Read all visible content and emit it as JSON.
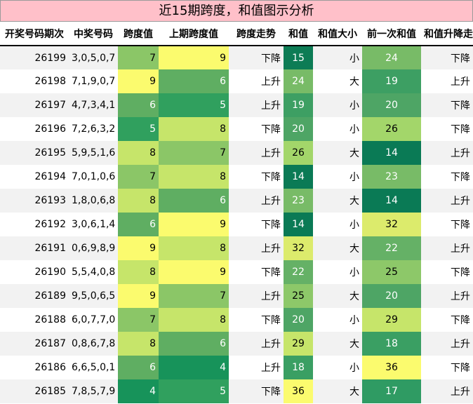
{
  "title": "近15期跨度，和值图示分析",
  "headers": [
    "开奖号码期次",
    "中奖号码",
    "跨度值",
    "上期跨度值",
    "跨度走势",
    "和值",
    "和值大小",
    "前一次和值",
    "和值升降走势"
  ],
  "colors": {
    "scale": {
      "4": "#17935a",
      "5": "#30a05e",
      "6": "#5fae62",
      "7": "#8bc667",
      "8": "#c6e56a",
      "9": "#fbfb6e",
      "14": "#0a7a55",
      "15": "#0d7c55",
      "17": "#2f9b63",
      "18": "#3a9f63",
      "19": "#3d9f63",
      "20": "#4ea565",
      "22": "#65b166",
      "23": "#78bb67",
      "24": "#78bb67",
      "25": "#8dc869",
      "26": "#a3d66a",
      "29": "#c6e56a",
      "32": "#dceb6c",
      "36": "#fbfb6e"
    }
  },
  "rows": [
    {
      "issue": "26199",
      "numbers": "3,0,5,0,7",
      "span": "7",
      "prev_span": "9",
      "span_trend": "下降",
      "sum": "15",
      "sum_size": "小",
      "prev_sum": "24",
      "sum_trend": "下降"
    },
    {
      "issue": "26198",
      "numbers": "7,1,9,0,7",
      "span": "9",
      "prev_span": "6",
      "span_trend": "上升",
      "sum": "24",
      "sum_size": "大",
      "prev_sum": "19",
      "sum_trend": "上升"
    },
    {
      "issue": "26197",
      "numbers": "4,7,3,4,1",
      "span": "6",
      "prev_span": "5",
      "span_trend": "上升",
      "sum": "19",
      "sum_size": "小",
      "prev_sum": "20",
      "sum_trend": "下降"
    },
    {
      "issue": "26196",
      "numbers": "7,2,6,3,2",
      "span": "5",
      "prev_span": "8",
      "span_trend": "下降",
      "sum": "20",
      "sum_size": "小",
      "prev_sum": "26",
      "sum_trend": "下降"
    },
    {
      "issue": "26195",
      "numbers": "5,9,5,1,6",
      "span": "8",
      "prev_span": "7",
      "span_trend": "上升",
      "sum": "26",
      "sum_size": "大",
      "prev_sum": "14",
      "sum_trend": "上升"
    },
    {
      "issue": "26194",
      "numbers": "7,0,1,0,6",
      "span": "7",
      "prev_span": "8",
      "span_trend": "下降",
      "sum": "14",
      "sum_size": "小",
      "prev_sum": "23",
      "sum_trend": "下降"
    },
    {
      "issue": "26193",
      "numbers": "1,8,0,6,8",
      "span": "8",
      "prev_span": "6",
      "span_trend": "上升",
      "sum": "23",
      "sum_size": "大",
      "prev_sum": "14",
      "sum_trend": "上升"
    },
    {
      "issue": "26192",
      "numbers": "3,0,6,1,4",
      "span": "6",
      "prev_span": "9",
      "span_trend": "下降",
      "sum": "14",
      "sum_size": "小",
      "prev_sum": "32",
      "sum_trend": "下降"
    },
    {
      "issue": "26191",
      "numbers": "0,6,9,8,9",
      "span": "9",
      "prev_span": "8",
      "span_trend": "上升",
      "sum": "32",
      "sum_size": "大",
      "prev_sum": "22",
      "sum_trend": "上升"
    },
    {
      "issue": "26190",
      "numbers": "5,5,4,0,8",
      "span": "8",
      "prev_span": "9",
      "span_trend": "下降",
      "sum": "22",
      "sum_size": "小",
      "prev_sum": "25",
      "sum_trend": "下降"
    },
    {
      "issue": "26189",
      "numbers": "9,5,0,6,5",
      "span": "9",
      "prev_span": "7",
      "span_trend": "上升",
      "sum": "25",
      "sum_size": "大",
      "prev_sum": "20",
      "sum_trend": "上升"
    },
    {
      "issue": "26188",
      "numbers": "6,0,7,7,0",
      "span": "7",
      "prev_span": "8",
      "span_trend": "下降",
      "sum": "20",
      "sum_size": "小",
      "prev_sum": "29",
      "sum_trend": "下降"
    },
    {
      "issue": "26187",
      "numbers": "0,8,6,7,8",
      "span": "8",
      "prev_span": "6",
      "span_trend": "上升",
      "sum": "29",
      "sum_size": "大",
      "prev_sum": "18",
      "sum_trend": "上升"
    },
    {
      "issue": "26186",
      "numbers": "6,6,5,0,1",
      "span": "6",
      "prev_span": "4",
      "span_trend": "上升",
      "sum": "18",
      "sum_size": "小",
      "prev_sum": "36",
      "sum_trend": "下降"
    },
    {
      "issue": "26185",
      "numbers": "7,8,5,7,9",
      "span": "4",
      "prev_span": "5",
      "span_trend": "下降",
      "sum": "36",
      "sum_size": "大",
      "prev_sum": "17",
      "sum_trend": "上升"
    }
  ]
}
